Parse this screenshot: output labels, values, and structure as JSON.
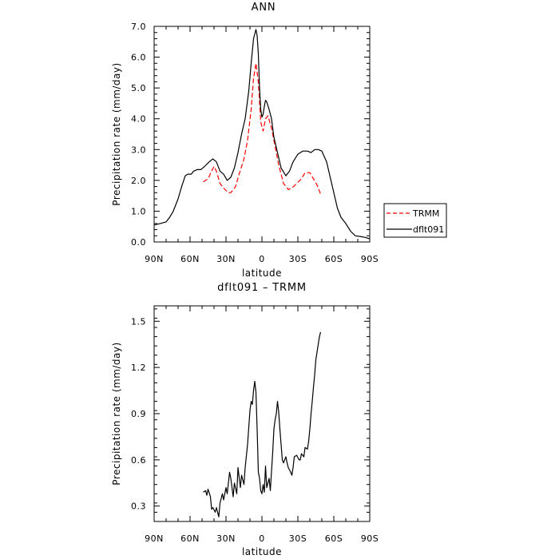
{
  "chart_data": [
    {
      "type": "line",
      "title": "ANN",
      "xlabel": "latitude",
      "ylabel": "Precipitation rate  (mm/day)",
      "xlim": [
        -90,
        90
      ],
      "ylim": [
        0,
        7
      ],
      "x_ticks": [
        -90,
        -60,
        -30,
        0,
        30,
        60,
        90
      ],
      "x_tick_labels": [
        "90N",
        "60N",
        "30N",
        "0",
        "30S",
        "60S",
        "90S"
      ],
      "y_ticks": [
        0,
        1,
        2,
        3,
        4,
        5,
        6,
        7
      ],
      "y_tick_labels": [
        "0.0",
        "1.0",
        "2.0",
        "3.0",
        "4.0",
        "5.0",
        "6.0",
        "7.0"
      ],
      "legend_position": "outside-right",
      "series": [
        {
          "name": "TRMM",
          "color": "#ff0000",
          "dash": "dashed",
          "x": [
            -49,
            -45,
            -42,
            -40,
            -38,
            -35,
            -32,
            -28,
            -26,
            -22,
            -19,
            -15,
            -12,
            -9,
            -7,
            -5,
            -3,
            -1,
            1,
            3,
            5,
            8,
            11,
            14,
            18,
            22,
            25,
            29,
            33,
            36,
            40,
            43,
            46,
            49
          ],
          "y": [
            1.95,
            2.05,
            2.3,
            2.45,
            2.3,
            1.9,
            1.75,
            1.6,
            1.6,
            1.8,
            2.2,
            2.7,
            3.3,
            4.3,
            5.3,
            5.8,
            5.2,
            3.9,
            3.6,
            4.0,
            4.1,
            3.7,
            3.1,
            2.5,
            1.9,
            1.7,
            1.75,
            1.9,
            2.05,
            2.25,
            2.25,
            2.05,
            1.85,
            1.55
          ]
        },
        {
          "name": "dflt091",
          "color": "#000000",
          "dash": "solid",
          "x": [
            -90,
            -85,
            -80,
            -77,
            -74,
            -70,
            -67,
            -64,
            -62,
            -59,
            -57,
            -54,
            -51,
            -48,
            -44,
            -41,
            -38,
            -35,
            -32,
            -29,
            -26,
            -23,
            -20,
            -17,
            -14,
            -11,
            -9,
            -7,
            -5,
            -4,
            -3,
            -2,
            -1,
            0,
            1,
            2,
            3,
            4,
            6,
            8,
            10,
            13,
            16,
            20,
            23,
            26,
            30,
            34,
            38,
            41,
            44,
            47,
            50,
            54,
            57,
            60,
            63,
            66,
            70,
            74,
            78,
            82,
            86,
            90
          ],
          "y": [
            0.55,
            0.6,
            0.65,
            0.8,
            1.0,
            1.4,
            1.8,
            2.15,
            2.2,
            2.2,
            2.3,
            2.35,
            2.35,
            2.45,
            2.6,
            2.7,
            2.6,
            2.3,
            2.2,
            2.0,
            2.1,
            2.4,
            2.9,
            3.5,
            4.0,
            4.9,
            5.8,
            6.6,
            6.9,
            6.7,
            6.1,
            5.0,
            4.3,
            4.05,
            4.15,
            4.4,
            4.6,
            4.55,
            4.3,
            4.0,
            3.4,
            2.9,
            2.4,
            2.15,
            2.3,
            2.6,
            2.85,
            2.95,
            2.95,
            2.9,
            3.0,
            3.0,
            2.95,
            2.6,
            2.1,
            1.6,
            1.1,
            0.8,
            0.6,
            0.35,
            0.2,
            0.18,
            0.15,
            0.1
          ]
        }
      ]
    },
    {
      "type": "line",
      "title": "dflt091 – TRMM",
      "xlabel": "latitude",
      "ylabel": "Precipitation rate  (mm/day)",
      "xlim": [
        -90,
        90
      ],
      "ylim": [
        0.2,
        1.6
      ],
      "x_ticks": [
        -90,
        -60,
        -30,
        0,
        30,
        60,
        90
      ],
      "x_tick_labels": [
        "90N",
        "60N",
        "30N",
        "0",
        "30S",
        "60S",
        "90S"
      ],
      "y_ticks": [
        0.3,
        0.6,
        0.9,
        1.2,
        1.5
      ],
      "y_tick_labels": [
        "0.3",
        "0.6",
        "0.9",
        "1.2",
        "1.5"
      ],
      "series": [
        {
          "name": "",
          "color": "#000000",
          "dash": "solid",
          "x": [
            -49,
            -47,
            -46,
            -45,
            -43,
            -42,
            -41,
            -39,
            -38,
            -36,
            -35,
            -33,
            -32,
            -30,
            -29,
            -27,
            -26,
            -24,
            -23,
            -21,
            -20,
            -18,
            -17,
            -15,
            -14,
            -12,
            -10,
            -9,
            -8,
            -7,
            -6,
            -5,
            -4,
            -3,
            -2,
            -1,
            0,
            1,
            2,
            3,
            4,
            5,
            6,
            7,
            9,
            10,
            11,
            12,
            13,
            14,
            15,
            16,
            17,
            18,
            20,
            21,
            22,
            24,
            25,
            26,
            27,
            29,
            31,
            32,
            33,
            35,
            36,
            38,
            39,
            40,
            41,
            42,
            43,
            44,
            45,
            46,
            47,
            48,
            49
          ],
          "y": [
            0.39,
            0.4,
            0.37,
            0.41,
            0.36,
            0.28,
            0.29,
            0.26,
            0.29,
            0.23,
            0.32,
            0.38,
            0.34,
            0.42,
            0.38,
            0.52,
            0.48,
            0.36,
            0.45,
            0.38,
            0.55,
            0.42,
            0.5,
            0.44,
            0.55,
            0.7,
            0.92,
            0.98,
            0.96,
            1.05,
            1.11,
            1.04,
            0.8,
            0.52,
            0.48,
            0.4,
            0.38,
            0.44,
            0.39,
            0.56,
            0.42,
            0.45,
            0.48,
            0.4,
            0.65,
            0.8,
            0.86,
            0.9,
            0.98,
            0.91,
            0.8,
            0.7,
            0.6,
            0.58,
            0.62,
            0.58,
            0.55,
            0.52,
            0.5,
            0.55,
            0.62,
            0.63,
            0.6,
            0.6,
            0.64,
            0.62,
            0.68,
            0.67,
            0.72,
            0.8,
            0.9,
            0.98,
            1.07,
            1.15,
            1.25,
            1.3,
            1.35,
            1.4,
            1.43
          ]
        }
      ]
    }
  ]
}
